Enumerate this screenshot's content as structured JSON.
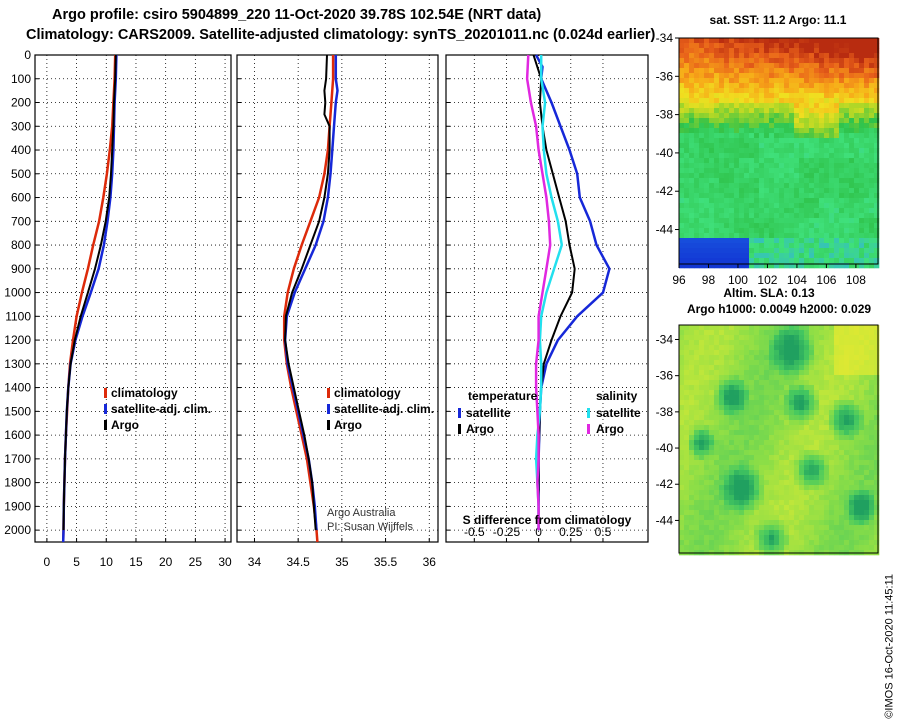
{
  "header": {
    "line1": "Argo profile: csiro 5904899_220 11-Oct-2020 39.78S 102.54E (NRT data)",
    "line2": "Climatology: CARS2009. Satellite-adjusted climatology: synTS_20201011.nc (0.024d earlier)"
  },
  "credit": "©IMOS 16-Oct-2020 11:45:11",
  "colors": {
    "climatology": "#dd2a0a",
    "satellite": "#1628d8",
    "argo": "#000000",
    "salinity_sat": "#22e0ee",
    "salinity_argo": "#e028e0"
  },
  "chart_data": [
    {
      "type": "line",
      "name": "temperature-profile",
      "xlim": [
        -2,
        31
      ],
      "ylim": [
        0,
        2050
      ],
      "xticks": [
        0,
        5,
        10,
        15,
        20,
        25,
        30
      ],
      "yticks": [
        0,
        100,
        200,
        300,
        400,
        500,
        600,
        700,
        800,
        900,
        1000,
        1100,
        1200,
        1300,
        1400,
        1500,
        1600,
        1700,
        1800,
        1900,
        2000
      ],
      "legend": [
        "climatology",
        "satellite-adj. clim.",
        "Argo"
      ],
      "series": [
        {
          "name": "climatology",
          "color": "#dd2a0a",
          "width": 2.5,
          "points": [
            [
              11.5,
              0
            ],
            [
              11.4,
              100
            ],
            [
              11.2,
              200
            ],
            [
              11.0,
              300
            ],
            [
              10.6,
              400
            ],
            [
              10.1,
              500
            ],
            [
              9.5,
              600
            ],
            [
              8.8,
              700
            ],
            [
              7.8,
              800
            ],
            [
              6.9,
              900
            ],
            [
              5.9,
              1000
            ],
            [
              5.0,
              1100
            ],
            [
              4.4,
              1200
            ],
            [
              3.9,
              1300
            ],
            [
              3.6,
              1400
            ],
            [
              3.4,
              1500
            ],
            [
              3.2,
              1600
            ],
            [
              3.05,
              1700
            ],
            [
              2.95,
              1800
            ],
            [
              2.85,
              1900
            ],
            [
              2.8,
              2000
            ],
            [
              2.75,
              2050
            ]
          ]
        },
        {
          "name": "satellite-adj. clim.",
          "color": "#1628d8",
          "width": 2.5,
          "points": [
            [
              11.7,
              0
            ],
            [
              11.6,
              100
            ],
            [
              11.4,
              200
            ],
            [
              11.3,
              300
            ],
            [
              11.2,
              400
            ],
            [
              11.0,
              500
            ],
            [
              10.7,
              600
            ],
            [
              10.2,
              700
            ],
            [
              9.6,
              800
            ],
            [
              8.7,
              900
            ],
            [
              7.4,
              1000
            ],
            [
              6.0,
              1100
            ],
            [
              4.8,
              1200
            ],
            [
              4.0,
              1300
            ],
            [
              3.6,
              1400
            ],
            [
              3.35,
              1500
            ],
            [
              3.2,
              1600
            ],
            [
              3.05,
              1700
            ],
            [
              2.95,
              1800
            ],
            [
              2.85,
              1900
            ],
            [
              2.8,
              2000
            ],
            [
              2.75,
              2050
            ]
          ]
        },
        {
          "name": "Argo",
          "color": "#000000",
          "width": 2,
          "points": [
            [
              11.6,
              0
            ],
            [
              11.5,
              100
            ],
            [
              11.3,
              200
            ],
            [
              11.2,
              300
            ],
            [
              11.0,
              400
            ],
            [
              10.8,
              500
            ],
            [
              10.5,
              600
            ],
            [
              9.9,
              700
            ],
            [
              9.1,
              800
            ],
            [
              8.1,
              900
            ],
            [
              6.9,
              1000
            ],
            [
              5.7,
              1100
            ],
            [
              4.7,
              1200
            ],
            [
              4.0,
              1300
            ],
            [
              3.6,
              1400
            ],
            [
              3.35,
              1500
            ],
            [
              3.2,
              1600
            ],
            [
              3.05,
              1700
            ],
            [
              2.95,
              1800
            ],
            [
              2.85,
              1900
            ],
            [
              2.8,
              2000
            ]
          ]
        }
      ]
    },
    {
      "type": "line",
      "name": "salinity-profile",
      "xlim": [
        33.8,
        36.1
      ],
      "ylim": [
        0,
        2050
      ],
      "xticks": [
        34,
        34.5,
        35,
        35.5,
        36
      ],
      "xticklabels": [
        "34",
        "34.5",
        "35",
        "35.5",
        "36"
      ],
      "legend": [
        "climatology",
        "satellite-adj. clim.",
        "Argo"
      ],
      "annotation": [
        "Argo Australia",
        "PI: Susan Wijffels"
      ],
      "series": [
        {
          "name": "climatology",
          "color": "#dd2a0a",
          "width": 2.5,
          "points": [
            [
              34.9,
              0
            ],
            [
              34.9,
              100
            ],
            [
              34.88,
              200
            ],
            [
              34.86,
              300
            ],
            [
              34.84,
              400
            ],
            [
              34.8,
              500
            ],
            [
              34.74,
              600
            ],
            [
              34.64,
              700
            ],
            [
              34.54,
              800
            ],
            [
              34.45,
              900
            ],
            [
              34.38,
              1000
            ],
            [
              34.34,
              1100
            ],
            [
              34.34,
              1200
            ],
            [
              34.37,
              1300
            ],
            [
              34.42,
              1400
            ],
            [
              34.48,
              1500
            ],
            [
              34.54,
              1600
            ],
            [
              34.6,
              1700
            ],
            [
              34.64,
              1800
            ],
            [
              34.68,
              1900
            ],
            [
              34.71,
              2000
            ],
            [
              34.72,
              2050
            ]
          ]
        },
        {
          "name": "satellite-adj. clim.",
          "color": "#1628d8",
          "width": 2.5,
          "points": [
            [
              34.93,
              0
            ],
            [
              34.93,
              100
            ],
            [
              34.95,
              150
            ],
            [
              34.93,
              200
            ],
            [
              34.91,
              300
            ],
            [
              34.89,
              400
            ],
            [
              34.87,
              500
            ],
            [
              34.84,
              600
            ],
            [
              34.79,
              700
            ],
            [
              34.7,
              800
            ],
            [
              34.58,
              900
            ],
            [
              34.46,
              1000
            ],
            [
              34.37,
              1100
            ],
            [
              34.35,
              1200
            ],
            [
              34.38,
              1300
            ],
            [
              34.44,
              1400
            ],
            [
              34.5,
              1500
            ],
            [
              34.56,
              1600
            ],
            [
              34.62,
              1700
            ],
            [
              34.66,
              1800
            ],
            [
              34.69,
              1900
            ],
            [
              34.71,
              2000
            ]
          ]
        },
        {
          "name": "Argo",
          "color": "#000000",
          "width": 2,
          "points": [
            [
              34.83,
              0
            ],
            [
              34.82,
              100
            ],
            [
              34.8,
              150
            ],
            [
              34.81,
              200
            ],
            [
              34.8,
              250
            ],
            [
              34.86,
              300
            ],
            [
              34.86,
              400
            ],
            [
              34.84,
              500
            ],
            [
              34.8,
              600
            ],
            [
              34.74,
              700
            ],
            [
              34.64,
              800
            ],
            [
              34.54,
              900
            ],
            [
              34.43,
              1000
            ],
            [
              34.36,
              1100
            ],
            [
              34.35,
              1200
            ],
            [
              34.39,
              1300
            ],
            [
              34.45,
              1400
            ],
            [
              34.51,
              1500
            ],
            [
              34.57,
              1600
            ],
            [
              34.62,
              1700
            ],
            [
              34.66,
              1800
            ],
            [
              34.68,
              1900
            ],
            [
              34.7,
              2000
            ]
          ]
        }
      ]
    },
    {
      "type": "line",
      "name": "difference-profile",
      "xlim": [
        -0.72,
        0.85
      ],
      "ylim": [
        0,
        2050
      ],
      "xticks": [
        -0.5,
        -0.25,
        0,
        0.25,
        0.5
      ],
      "xticklabels": [
        "-0.5",
        "-0.25",
        "0",
        "0.25",
        "0.5"
      ],
      "xlabel": "S difference from climatology",
      "legend_groups": [
        {
          "title": "temperature",
          "entries": [
            "satellite",
            "Argo"
          ]
        },
        {
          "title": "salinity",
          "entries": [
            "satellite",
            "Argo"
          ]
        }
      ],
      "legend": [
        "temperature",
        "satellite",
        "Argo",
        "salinity",
        "satellite",
        "Argo"
      ],
      "series": [
        {
          "name": "temperature satellite",
          "color": "#1628d8",
          "width": 2.5,
          "points": [
            [
              -0.02,
              0
            ],
            [
              0.03,
              50
            ],
            [
              0.02,
              100
            ],
            [
              0.1,
              200
            ],
            [
              0.17,
              300
            ],
            [
              0.24,
              400
            ],
            [
              0.3,
              500
            ],
            [
              0.32,
              600
            ],
            [
              0.4,
              700
            ],
            [
              0.45,
              800
            ],
            [
              0.55,
              900
            ],
            [
              0.5,
              1000
            ],
            [
              0.3,
              1100
            ],
            [
              0.15,
              1200
            ],
            [
              0.06,
              1300
            ],
            [
              0.02,
              1400
            ],
            [
              0.01,
              1500
            ],
            [
              0.0,
              1700
            ],
            [
              0.0,
              2000
            ]
          ]
        },
        {
          "name": "temperature Argo",
          "color": "#000000",
          "width": 2,
          "points": [
            [
              -0.04,
              0
            ],
            [
              0.02,
              100
            ],
            [
              0.01,
              200
            ],
            [
              0.03,
              300
            ],
            [
              0.06,
              400
            ],
            [
              0.11,
              500
            ],
            [
              0.16,
              600
            ],
            [
              0.21,
              700
            ],
            [
              0.24,
              800
            ],
            [
              0.28,
              900
            ],
            [
              0.26,
              1000
            ],
            [
              0.17,
              1100
            ],
            [
              0.1,
              1200
            ],
            [
              0.04,
              1300
            ],
            [
              0.02,
              1400
            ],
            [
              0.01,
              1500
            ],
            [
              0.0,
              1700
            ],
            [
              0.0,
              2000
            ]
          ]
        },
        {
          "name": "salinity satellite",
          "color": "#22e0ee",
          "width": 2.5,
          "points": [
            [
              0.02,
              0
            ],
            [
              0.02,
              100
            ],
            [
              0.05,
              200
            ],
            [
              0.03,
              300
            ],
            [
              0.04,
              400
            ],
            [
              0.06,
              500
            ],
            [
              0.1,
              600
            ],
            [
              0.15,
              700
            ],
            [
              0.18,
              800
            ],
            [
              0.12,
              900
            ],
            [
              0.06,
              1000
            ],
            [
              0.02,
              1100
            ],
            [
              0.01,
              1200
            ],
            [
              0.02,
              1300
            ],
            [
              0.02,
              1400
            ],
            [
              0.01,
              1500
            ],
            [
              -0.01,
              1600
            ],
            [
              -0.02,
              1700
            ],
            [
              -0.01,
              1800
            ],
            [
              0.0,
              1900
            ],
            [
              0.0,
              2000
            ]
          ]
        },
        {
          "name": "salinity Argo",
          "color": "#e028e0",
          "width": 2.5,
          "points": [
            [
              -0.08,
              0
            ],
            [
              -0.09,
              100
            ],
            [
              -0.06,
              200
            ],
            [
              -0.02,
              300
            ],
            [
              0.0,
              400
            ],
            [
              0.03,
              500
            ],
            [
              0.06,
              600
            ],
            [
              0.08,
              700
            ],
            [
              0.09,
              800
            ],
            [
              0.06,
              900
            ],
            [
              0.03,
              1000
            ],
            [
              0.0,
              1100
            ],
            [
              0.0,
              1200
            ],
            [
              -0.02,
              1300
            ],
            [
              -0.02,
              1400
            ],
            [
              -0.01,
              1500
            ],
            [
              0.0,
              1600
            ],
            [
              0.0,
              1700
            ],
            [
              -0.01,
              1800
            ],
            [
              0.0,
              1900
            ],
            [
              0.0,
              2000
            ]
          ]
        }
      ]
    },
    {
      "type": "heatmap",
      "name": "sst-map",
      "title": "sat. SST: 11.2 Argo: 11.1",
      "x": [
        96,
        98,
        100,
        102,
        104,
        106,
        108
      ],
      "y": [
        -34,
        -36,
        -38,
        -40,
        -42,
        -44
      ],
      "xlim": [
        96,
        109.5
      ],
      "ylim": [
        -45.8,
        -34
      ],
      "colorscale": [
        "#0c1cc8",
        "#2ba0ff",
        "#3fe07a",
        "#2fc24a",
        "#a6d628",
        "#f0e020",
        "#f7a818",
        "#e8601a",
        "#b82c10"
      ]
    },
    {
      "type": "heatmap",
      "name": "sla-map",
      "title": [
        "Altim. SLA: 0.13",
        "Argo h1000: 0.0049 h2000: 0.029"
      ],
      "y": [
        -34,
        -36,
        -38,
        -40,
        -42,
        -44
      ],
      "ylim": [
        -45.8,
        -33.2
      ],
      "colorscale": [
        "#20a060",
        "#45c860",
        "#88dd48",
        "#c8e838",
        "#e8e830"
      ]
    }
  ]
}
